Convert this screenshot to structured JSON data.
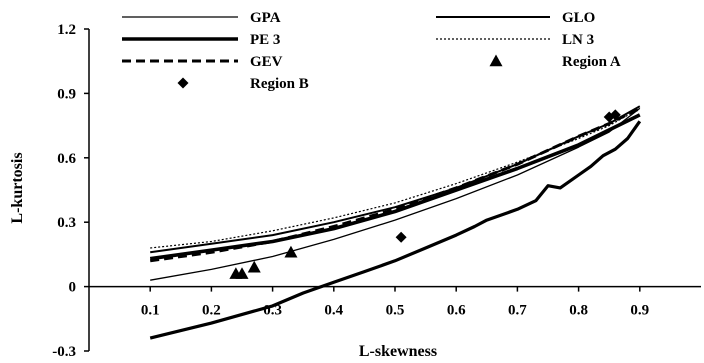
{
  "chart_data": {
    "type": "line",
    "xlabel": "L-skewness",
    "ylabel": "L-kurtosis",
    "xlim": [
      0,
      1.0
    ],
    "ylim": [
      -0.3,
      1.2
    ],
    "x_ticks": [
      "0.1",
      "0.2",
      "0.3",
      "0.4",
      "0.5",
      "0.6",
      "0.7",
      "0.8",
      "0.9"
    ],
    "y_ticks": [
      "1.2",
      "0.9",
      "0.6",
      "0.3",
      "0",
      "-0.3"
    ],
    "grid": false,
    "legend_position": "top",
    "series": [
      {
        "name": "GPA",
        "style": "thin-solid",
        "x": [
          0.1,
          0.2,
          0.3,
          0.4,
          0.5,
          0.6,
          0.7,
          0.8,
          0.85,
          0.9
        ],
        "y": [
          0.03,
          0.08,
          0.14,
          0.22,
          0.31,
          0.41,
          0.52,
          0.65,
          0.72,
          0.83
        ]
      },
      {
        "name": "GLO",
        "style": "medium-solid",
        "x": [
          0.1,
          0.2,
          0.3,
          0.4,
          0.5,
          0.6,
          0.7,
          0.8,
          0.85,
          0.9
        ],
        "y": [
          0.16,
          0.2,
          0.24,
          0.3,
          0.37,
          0.46,
          0.57,
          0.7,
          0.76,
          0.84
        ]
      },
      {
        "name": "PE 3",
        "style": "thick-solid",
        "x": [
          0.1,
          0.2,
          0.3,
          0.4,
          0.5,
          0.6,
          0.7,
          0.8,
          0.85,
          0.9
        ],
        "y": [
          0.13,
          0.17,
          0.21,
          0.27,
          0.35,
          0.45,
          0.55,
          0.66,
          0.73,
          0.8
        ]
      },
      {
        "name": "LN 3",
        "style": "dotted",
        "x": [
          0.1,
          0.2,
          0.3,
          0.4,
          0.5,
          0.6,
          0.7,
          0.8,
          0.85,
          0.9
        ],
        "y": [
          0.18,
          0.21,
          0.26,
          0.32,
          0.39,
          0.48,
          0.58,
          0.69,
          0.75,
          0.83
        ]
      },
      {
        "name": "GEV",
        "style": "dashed",
        "x": [
          0.1,
          0.2,
          0.3,
          0.4,
          0.5,
          0.6,
          0.7,
          0.8,
          0.85,
          0.9
        ],
        "y": [
          0.12,
          0.16,
          0.21,
          0.28,
          0.36,
          0.46,
          0.57,
          0.7,
          0.76,
          0.83
        ]
      },
      {
        "name": "",
        "style": "thick-jagged",
        "x": [
          0.1,
          0.2,
          0.3,
          0.35,
          0.4,
          0.45,
          0.5,
          0.55,
          0.6,
          0.63,
          0.65,
          0.7,
          0.73,
          0.75,
          0.77,
          0.8,
          0.82,
          0.84,
          0.86,
          0.88,
          0.9
        ],
        "y": [
          -0.24,
          -0.17,
          -0.09,
          -0.03,
          0.02,
          0.07,
          0.12,
          0.18,
          0.24,
          0.28,
          0.31,
          0.36,
          0.4,
          0.47,
          0.46,
          0.52,
          0.56,
          0.61,
          0.64,
          0.69,
          0.77
        ]
      }
    ],
    "points": [
      {
        "name": "Region A",
        "marker": "triangle",
        "x": [
          0.24,
          0.25,
          0.27,
          0.33
        ],
        "y": [
          0.06,
          0.06,
          0.09,
          0.16
        ]
      },
      {
        "name": "Region B",
        "marker": "diamond",
        "x": [
          0.51,
          0.85,
          0.86
        ],
        "y": [
          0.23,
          0.79,
          0.8
        ]
      }
    ]
  }
}
